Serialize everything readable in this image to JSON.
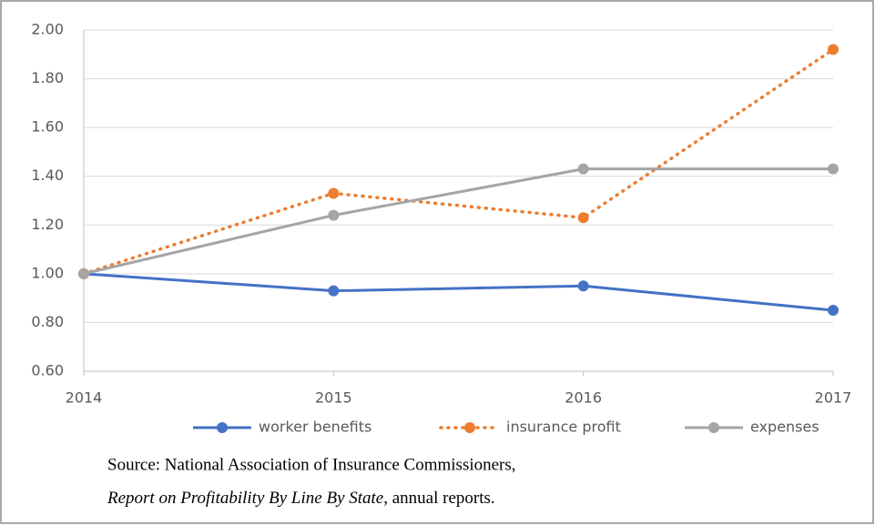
{
  "chart_data": {
    "type": "line",
    "x": [
      2014,
      2015,
      2016,
      2017
    ],
    "xlim": [
      2014,
      2017
    ],
    "xticks": [
      2014,
      2015,
      2016,
      2017
    ],
    "ylim": [
      0.6,
      2.0
    ],
    "yticks": [
      {
        "value": 0.6,
        "label": "0.60"
      },
      {
        "value": 0.8,
        "label": "0.80"
      },
      {
        "value": 1.0,
        "label": "1.00"
      },
      {
        "value": 1.2,
        "label": "1.20"
      },
      {
        "value": 1.4,
        "label": "1.40"
      },
      {
        "value": 1.6,
        "label": "1.60"
      },
      {
        "value": 1.8,
        "label": "1.80"
      },
      {
        "value": 2.0,
        "label": "2.00"
      }
    ],
    "grid": true,
    "legend": "bottom",
    "series": [
      {
        "name": "worker benefits",
        "color": "#4472c4",
        "dash": false,
        "values": [
          1.0,
          0.93,
          0.95,
          0.85
        ]
      },
      {
        "name": "insurance profit",
        "color": "#ed7d31",
        "dash": true,
        "values": [
          1.0,
          1.33,
          1.23,
          1.92
        ]
      },
      {
        "name": "expenses",
        "color": "#a5a5a5",
        "dash": false,
        "values": [
          1.0,
          1.24,
          1.43,
          1.43
        ]
      }
    ]
  },
  "source": {
    "line1": "Source:  National Association of Insurance Commissioners,",
    "line2_italic": "Report on Profitability By Line By State",
    "line2_rest": ", annual reports."
  }
}
